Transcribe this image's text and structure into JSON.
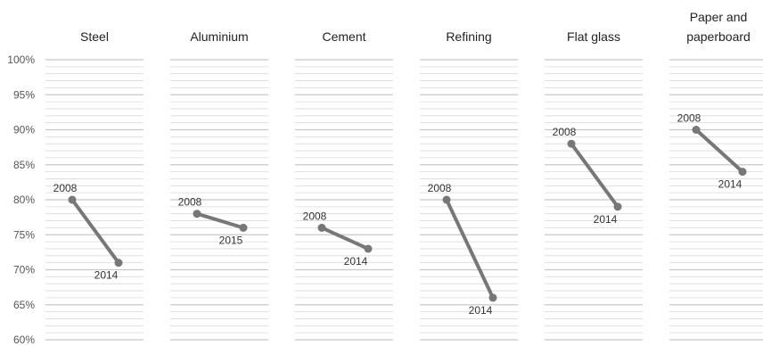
{
  "chart_data": {
    "type": "line",
    "y_unit": "%",
    "ylim": [
      60,
      100
    ],
    "y_ticks": [
      "100%",
      "95%",
      "90%",
      "85%",
      "80%",
      "75%",
      "70%",
      "65%",
      "60%"
    ],
    "grid": true,
    "colors": {
      "series": "#777777",
      "grid": "#d9d9d9",
      "text": "#333333"
    },
    "panels": [
      {
        "title": [
          "Steel"
        ],
        "points": [
          {
            "x": "2008",
            "y": 80
          },
          {
            "x": "2014",
            "y": 71
          }
        ]
      },
      {
        "title": [
          "Aluminium"
        ],
        "points": [
          {
            "x": "2008",
            "y": 78
          },
          {
            "x": "2015",
            "y": 76
          }
        ]
      },
      {
        "title": [
          "Cement"
        ],
        "points": [
          {
            "x": "2008",
            "y": 76
          },
          {
            "x": "2014",
            "y": 73
          }
        ]
      },
      {
        "title": [
          "Refining"
        ],
        "points": [
          {
            "x": "2008",
            "y": 80
          },
          {
            "x": "2014",
            "y": 66
          }
        ]
      },
      {
        "title": [
          "Flat glass"
        ],
        "points": [
          {
            "x": "2008",
            "y": 88
          },
          {
            "x": "2014",
            "y": 79
          }
        ]
      },
      {
        "title": [
          "Paper and",
          "paperboard"
        ],
        "points": [
          {
            "x": "2008",
            "y": 90
          },
          {
            "x": "2014",
            "y": 84
          }
        ]
      }
    ]
  }
}
